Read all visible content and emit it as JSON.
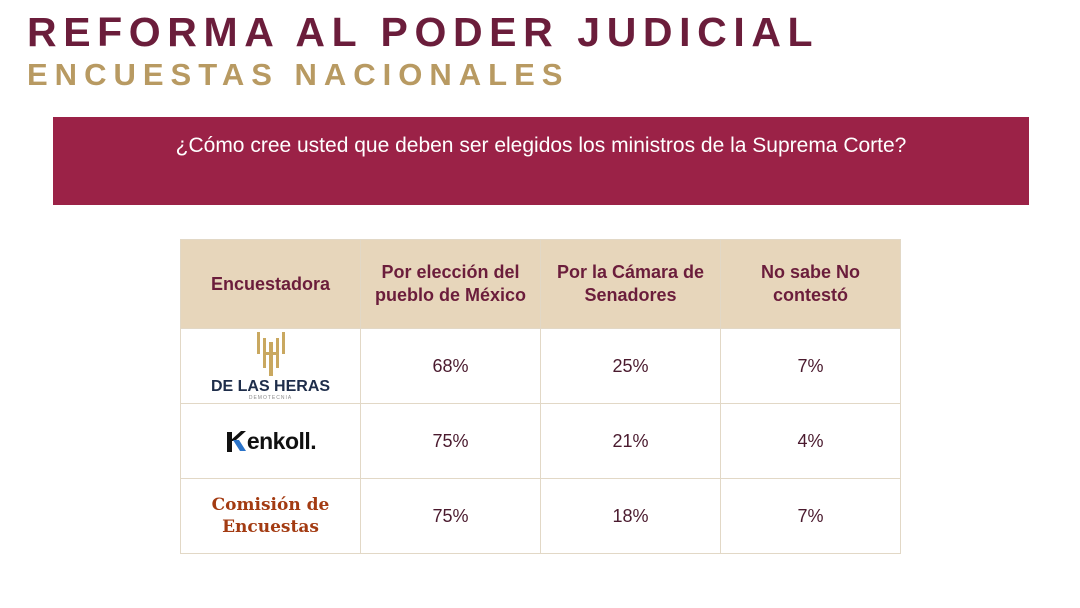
{
  "header": {
    "title": "REFORMA AL PODER JUDICIAL",
    "subtitle": "ENCUESTAS NACIONALES"
  },
  "question": "¿Cómo cree usted que deben ser elegidos los ministros de la Suprema Corte?",
  "table": {
    "headers": [
      "Encuestadora",
      "Por elección del pueblo de México",
      "Por la Cámara de Senadores",
      "No sabe No contestó"
    ],
    "rows": [
      {
        "pollster": "DE LAS HERAS",
        "pollster_sub": "DEMOTECNIA",
        "values": [
          "68%",
          "25%",
          "7%"
        ]
      },
      {
        "pollster": "enkoll.",
        "values": [
          "75%",
          "21%",
          "4%"
        ]
      },
      {
        "pollster": "Comisión de Encuestas",
        "values": [
          "75%",
          "18%",
          "7%"
        ]
      }
    ]
  },
  "colors": {
    "title": "#6b1d3b",
    "subtitle": "#b89a62",
    "banner": "#9b2247",
    "table_header_bg": "#e7d6bb",
    "table_border": "#e2d8c6"
  },
  "icons": [
    "de-las-heras-logo-icon",
    "enkoll-logo-icon"
  ]
}
